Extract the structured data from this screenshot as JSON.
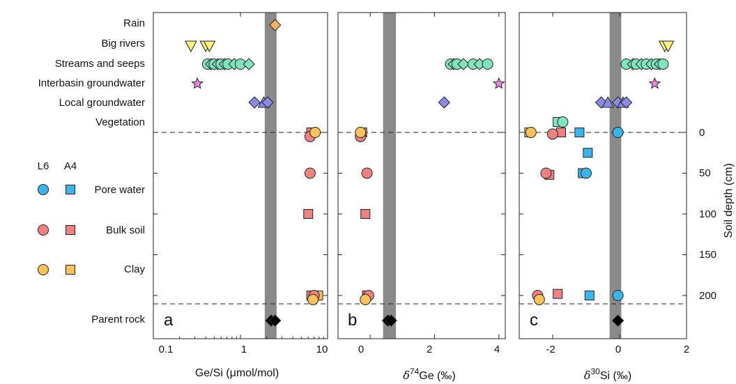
{
  "chart_data": {
    "type": "scatter",
    "row_labels": [
      "Rain",
      "Big rivers",
      "Streams and seeps",
      "Interbasin groundwater",
      "Local groundwater",
      "Vegetation",
      "Parent rock"
    ],
    "legend": {
      "header_l6": "L6",
      "header_a4": "A4",
      "entries": [
        {
          "label": "Pore water",
          "color": "#3bb4e9"
        },
        {
          "label": "Bulk soil",
          "color": "#f08181"
        },
        {
          "label": "Clay",
          "color": "#fbc25a"
        }
      ]
    },
    "colors": {
      "rain": "#f7b25b",
      "big_rivers": "#fdf37d",
      "streams": "#7fe5bc",
      "interbasin": "#f382e9",
      "local_gw": "#8c8ae8",
      "parent_rock": "#000000",
      "band": "#8a8a8a"
    },
    "depth_axis": {
      "label": "Soil depth (cm)",
      "ticks": [
        0,
        50,
        100,
        150,
        200
      ],
      "tick_labels": [
        "0",
        "50",
        "100",
        "150",
        "200"
      ],
      "range": [
        0,
        210
      ]
    },
    "panels": [
      {
        "id": "a",
        "letter": "a",
        "xlabel": "Ge/Si (μmol/mol)",
        "xlabel_main": "Ge/Si (μmol/mol)",
        "xscale": "log",
        "xlim": [
          0.1,
          10
        ],
        "xticks": [
          0.1,
          1,
          10
        ],
        "xtick_labels": [
          "0.1",
          "1",
          "10"
        ],
        "band": [
          1.9,
          2.6
        ],
        "rows": {
          "rain": [
            2.5
          ],
          "big_rivers": [
            0.27,
            0.4,
            0.44
          ],
          "streams": [
            0.42,
            0.46,
            0.5,
            0.55,
            0.6,
            0.66,
            0.72,
            0.85,
            1.0,
            1.25
          ],
          "interbasin": [
            0.32
          ],
          "local_gw": [
            1.45,
            1.85,
            2.05
          ],
          "parent_rock": [
            2.25,
            2.5
          ]
        },
        "soil": {
          "pore_l6": [],
          "pore_a4": [],
          "bulk_l6": [
            [
              6.3,
              5
            ],
            [
              6.3,
              50
            ],
            [
              7.0,
              200
            ]
          ],
          "bulk_a4": [
            [
              6.5,
              0
            ],
            [
              6.0,
              100
            ],
            [
              6.5,
              200
            ]
          ],
          "clay_l6": [
            [
              7.2,
              0
            ],
            [
              6.8,
              205
            ]
          ],
          "clay_a4": [
            [
              7.8,
              200
            ]
          ]
        }
      },
      {
        "id": "b",
        "letter": "b",
        "xlabel": "δ74Ge (‰)",
        "xlabel_main": "δ",
        "xlabel_sup": "74",
        "xlabel_rest": "Ge (‰)",
        "xscale": "linear",
        "xlim": [
          -1,
          4.2
        ],
        "xticks": [
          0,
          2,
          4
        ],
        "xtick_labels": [
          "0",
          "2",
          "4"
        ],
        "band": [
          0.4,
          0.8
        ],
        "rows": {
          "rain": [],
          "big_rivers": [],
          "streams": [
            2.5,
            2.6,
            2.7,
            2.9,
            3.2,
            3.4,
            3.65
          ],
          "interbasin": [
            4.0
          ],
          "local_gw": [
            2.3
          ],
          "parent_rock": [
            0.55,
            0.65
          ]
        },
        "soil": {
          "pore_l6": [],
          "pore_a4": [],
          "bulk_l6": [
            [
              -0.3,
              5
            ],
            [
              -0.1,
              50
            ],
            [
              -0.05,
              200
            ]
          ],
          "bulk_a4": [
            [
              -0.25,
              0
            ],
            [
              -0.15,
              100
            ],
            [
              -0.1,
              200
            ]
          ],
          "clay_l6": [
            [
              -0.3,
              0
            ],
            [
              -0.15,
              205
            ]
          ],
          "clay_a4": []
        }
      },
      {
        "id": "c",
        "letter": "c",
        "xlabel": "δ30Si (‰)",
        "xlabel_main": "δ",
        "xlabel_sup": "30",
        "xlabel_rest": "Si (‰)",
        "xscale": "linear",
        "xlim": [
          -3,
          2
        ],
        "xticks": [
          -2,
          0,
          2
        ],
        "xtick_labels": [
          "-2",
          "0",
          "2"
        ],
        "band": [
          -0.3,
          0.05
        ],
        "rows": {
          "rain": [],
          "big_rivers": [
            1.35,
            1.45
          ],
          "streams": [
            0.2,
            0.4,
            0.5,
            0.65,
            0.8,
            0.95,
            1.1,
            1.2,
            1.3
          ],
          "interbasin": [
            1.05
          ],
          "local_gw": [
            -0.55,
            -0.35,
            -0.05,
            0.1,
            0.2
          ],
          "parent_rock": [
            -0.05
          ],
          "vegetation": [
            -1.85,
            -1.7
          ]
        },
        "soil": {
          "pore_l6": [
            [
              -0.05,
              0
            ],
            [
              -1.0,
              50
            ],
            [
              -0.05,
              200
            ]
          ],
          "pore_a4": [
            [
              -1.2,
              0
            ],
            [
              -0.95,
              25
            ],
            [
              -1.1,
              50
            ],
            [
              -0.9,
              200
            ]
          ],
          "bulk_l6": [
            [
              -2.0,
              2
            ],
            [
              -2.2,
              50
            ],
            [
              -2.45,
              200
            ]
          ],
          "bulk_a4": [
            [
              -1.75,
              0
            ],
            [
              -2.1,
              52
            ],
            [
              -1.85,
              198
            ]
          ],
          "clay_l6": [
            [
              -2.65,
              0
            ],
            [
              -2.4,
              205
            ]
          ],
          "clay_a4": [
            [
              -2.7,
              0
            ]
          ]
        }
      }
    ]
  }
}
